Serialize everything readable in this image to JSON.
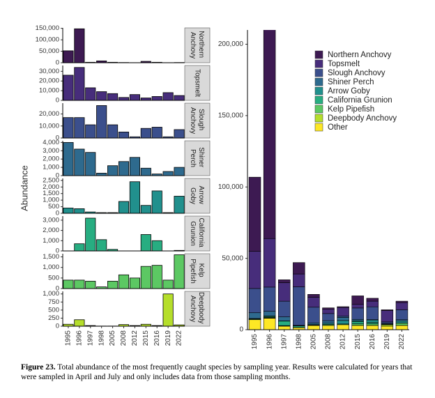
{
  "chart_data": {
    "type": "bar",
    "y_label": "Abundance",
    "categories": [
      "1995",
      "1996",
      "1997",
      "1998",
      "2005",
      "2008",
      "2012",
      "2015",
      "2016",
      "2019",
      "2022"
    ],
    "series": [
      {
        "name": "Northern Anchovy",
        "color": "#3d1a52",
        "values": [
          52000,
          148000,
          2000,
          8000,
          2000,
          1000,
          500,
          6000,
          2000,
          500,
          1000
        ],
        "ylim": [
          0,
          152000
        ],
        "yticks": [
          0,
          {
            "value": 50000,
            "label": "50,000"
          },
          {
            "value": 100000,
            "label": "100,000"
          },
          {
            "value": 150000,
            "label": "150,000"
          }
        ]
      },
      {
        "name": "Topsmelt",
        "color": "#472d7b",
        "values": [
          26000,
          34000,
          13000,
          9000,
          7000,
          3000,
          6000,
          2500,
          4000,
          8000,
          5000
        ],
        "ylim": [
          0,
          36000
        ],
        "yticks": [
          0,
          {
            "value": 10000,
            "label": "10,000"
          },
          {
            "value": 20000,
            "label": "20,000"
          },
          {
            "value": 30000,
            "label": "30,000"
          }
        ]
      },
      {
        "name": "Slough Anchovy",
        "color": "#3b4f8c",
        "values": [
          17000,
          17000,
          11000,
          27000,
          11000,
          5000,
          1000,
          8000,
          9000,
          1000,
          7000
        ],
        "ylim": [
          0,
          29000
        ],
        "yticks": [
          0,
          {
            "value": 10000,
            "label": "10,000"
          },
          {
            "value": 20000,
            "label": "20,000"
          }
        ]
      },
      {
        "name": "Shiner Perch",
        "color": "#2e6a8e",
        "values": [
          4000,
          3200,
          2800,
          300,
          1200,
          1700,
          2200,
          900,
          200,
          500,
          1000
        ],
        "ylim": [
          0,
          4200
        ],
        "yticks": [
          0,
          {
            "value": 1000,
            "label": "1,000"
          },
          {
            "value": 2000,
            "label": "2,000"
          },
          {
            "value": 3000,
            "label": "3,000"
          },
          {
            "value": 4000,
            "label": "4,000"
          }
        ]
      },
      {
        "name": "Arrow Goby",
        "color": "#21908d",
        "values": [
          400,
          350,
          100,
          50,
          50,
          900,
          2400,
          600,
          1700,
          50,
          1300
        ],
        "ylim": [
          0,
          2650
        ],
        "yticks": [
          0,
          500,
          {
            "value": 1000,
            "label": "1,000"
          },
          {
            "value": 1500,
            "label": "1,500"
          },
          {
            "value": 2000,
            "label": "2,000"
          },
          {
            "value": 2500,
            "label": "2,500"
          }
        ]
      },
      {
        "name": "California Grunion",
        "color": "#27ad81",
        "values": [
          0,
          700,
          3200,
          1100,
          150,
          0,
          0,
          1600,
          1000,
          0,
          50
        ],
        "ylim": [
          0,
          3400
        ],
        "yticks": [
          0,
          {
            "value": 1000,
            "label": "1,000"
          },
          {
            "value": 2000,
            "label": "2,000"
          },
          {
            "value": 3000,
            "label": "3,000"
          }
        ]
      },
      {
        "name": "Kelp Pipefish",
        "color": "#5cc863",
        "values": [
          400,
          400,
          350,
          80,
          350,
          650,
          500,
          1050,
          1100,
          400,
          1600
        ],
        "ylim": [
          0,
          1650
        ],
        "yticks": [
          0,
          500,
          {
            "value": 1000,
            "label": "1,000"
          },
          {
            "value": 1500,
            "label": "1,500"
          }
        ]
      },
      {
        "name": "Deepbody Anchovy",
        "color": "#b5de2b",
        "values": [
          60,
          200,
          20,
          5,
          5,
          50,
          20,
          60,
          20,
          1000,
          40
        ],
        "ylim": [
          0,
          1080
        ],
        "yticks": [
          0,
          250,
          500,
          750,
          {
            "value": 1000,
            "label": "1,000"
          }
        ]
      },
      {
        "name": "Other",
        "color": "#fde725",
        "values": [
          7000,
          8000,
          2500,
          1500,
          3000,
          3000,
          3500,
          3000,
          3000,
          2500,
          3000
        ]
      }
    ],
    "stacked_ylim": [
      0,
      210000
    ],
    "stacked_yticks": [
      0,
      {
        "value": 50000,
        "label": "50,000"
      },
      {
        "value": 100000,
        "label": "100,000"
      },
      {
        "value": 150000,
        "label": "150,000"
      },
      {
        "value": 200000,
        "label": "200,000"
      }
    ],
    "caption": {
      "label": "Figure 23.",
      "text": "Total abundance of the most frequently caught species by sampling year. Results were calculated for years that were sampled in April and July and only includes data from those sampling months."
    }
  }
}
